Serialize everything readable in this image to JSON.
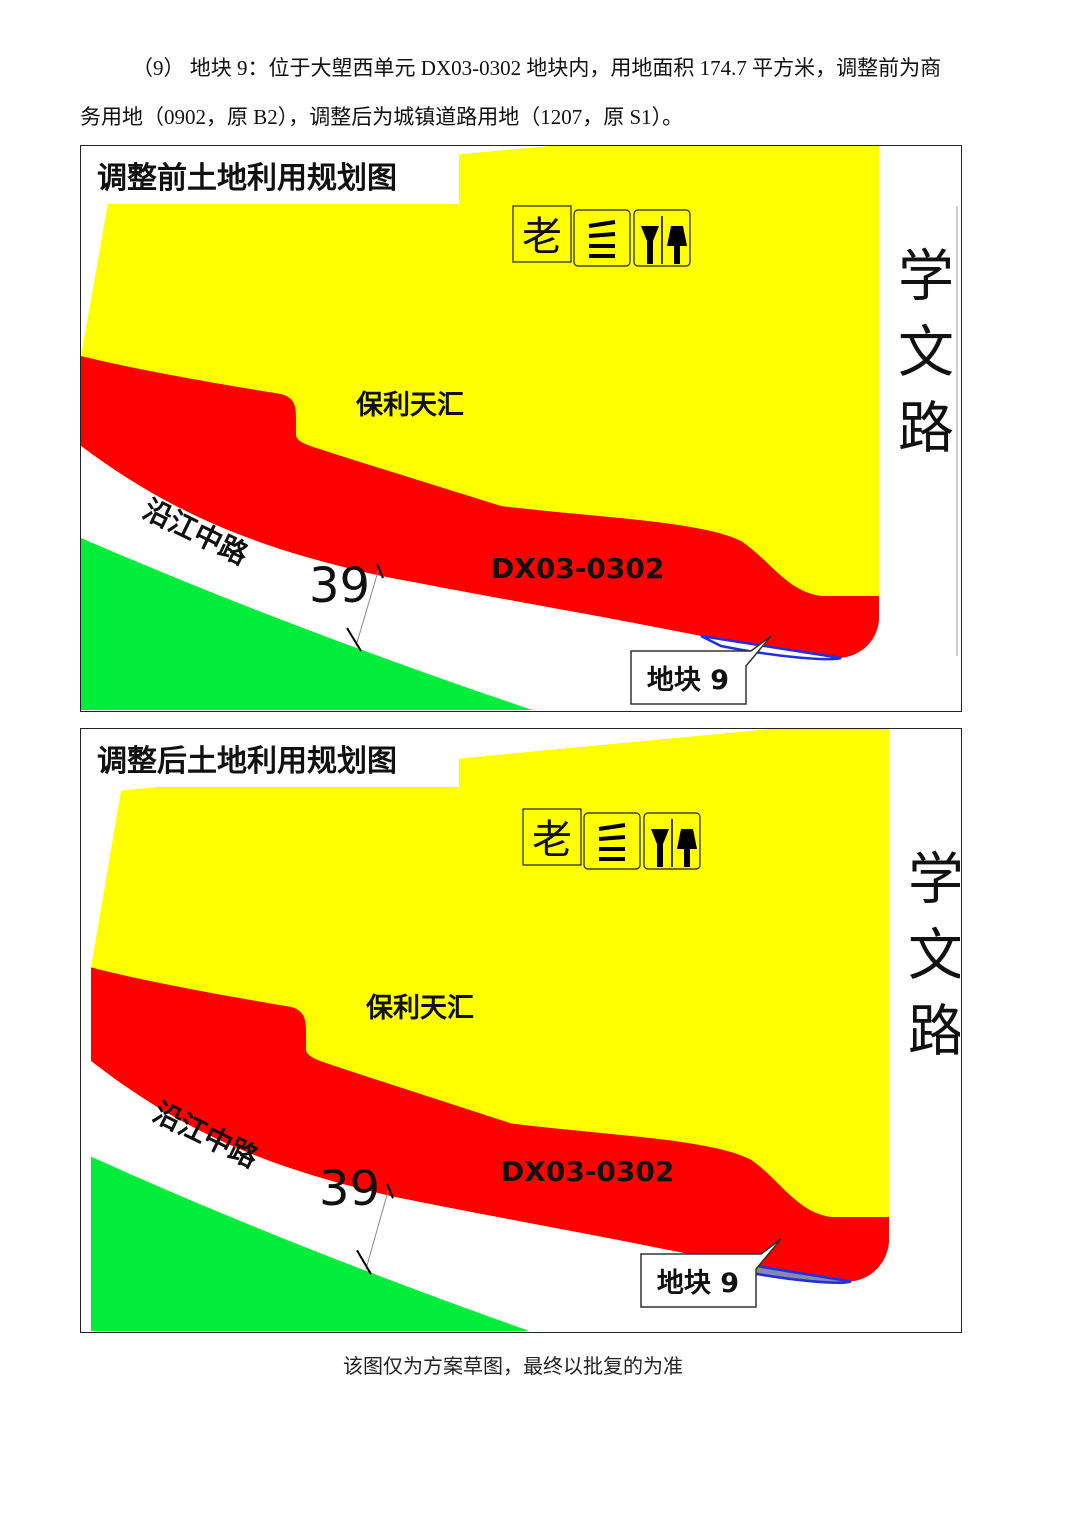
{
  "paragraph": "（9） 地块 9：位于大塱西单元 DX03-0302 地块内，用地面积 174.7 平方米，调整前为商务用地（0902，原 B2），调整后为城镇道路用地（1207，原 S1）。",
  "maps": [
    {
      "title": "调整前土地利用规划图",
      "icon_label": "老",
      "parcel_name": "保利天汇",
      "road_east": "学文路",
      "road_south": "沿江中路",
      "road_width": "39",
      "parcel_code": "DX03-0302",
      "plot_label": "地块 9"
    },
    {
      "title": "调整后土地利用规划图",
      "icon_label": "老",
      "parcel_name": "保利天汇",
      "road_east": "学文路",
      "road_south": "沿江中路",
      "road_width": "39",
      "parcel_code": "DX03-0302",
      "plot_label": "地块 9"
    }
  ],
  "caption": "该图仅为方案草图，最终以批复的为准"
}
